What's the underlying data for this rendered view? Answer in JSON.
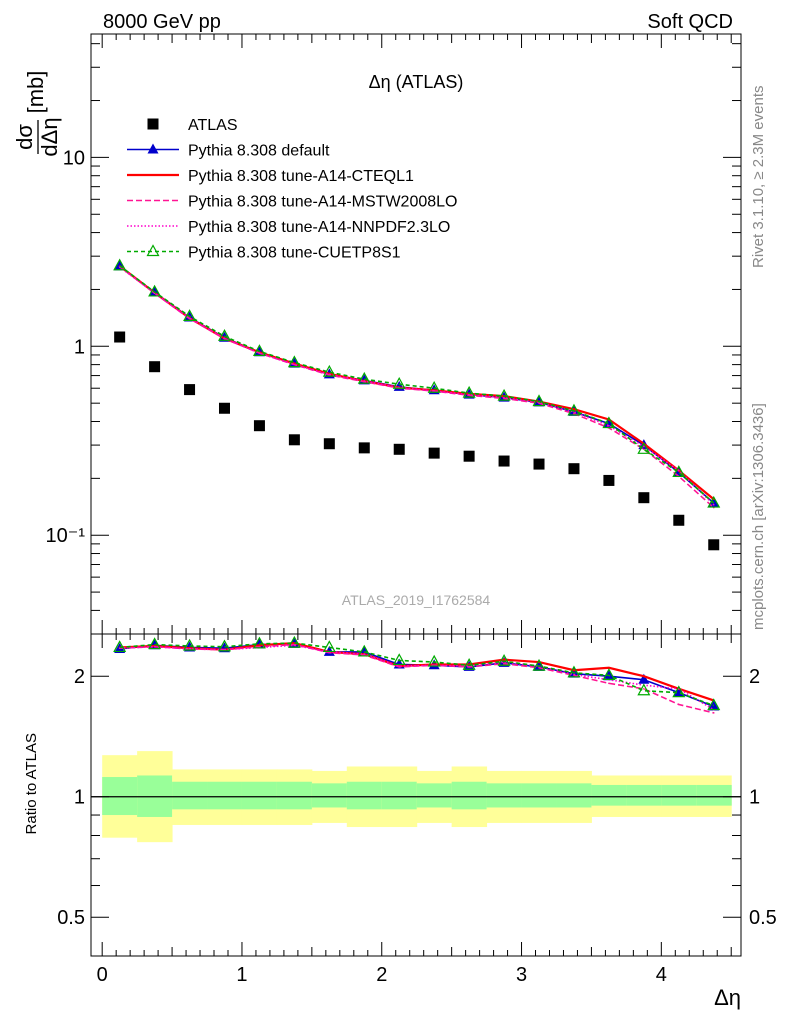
{
  "header": {
    "left_label": "8000 GeV pp",
    "right_label": "Soft QCD",
    "side_label_top": "Rivet 3.1.10, ≥ 2.3M events",
    "side_label_bottom": "mcplots.cern.ch [arXiv:1306.3436]",
    "analysis_id": "ATLAS_2019_I1762584"
  },
  "chart_data": [
    {
      "type": "line",
      "panel": "main",
      "title": "Δη (ATLAS)",
      "ylabel": "dσ/dΔη [mb]",
      "xlabel": "",
      "y_scale": "log",
      "xlim": [
        -0.08,
        4.57
      ],
      "ylim": [
        0.03,
        45
      ],
      "x_ticks": [
        0,
        1,
        2,
        3,
        4
      ],
      "y_tick_labels": [
        "10⁻¹",
        "1",
        "10"
      ],
      "y_tick_values": [
        0.1,
        1,
        10
      ],
      "x": [
        0.125,
        0.375,
        0.625,
        0.875,
        1.125,
        1.375,
        1.625,
        1.875,
        2.125,
        2.375,
        2.625,
        2.875,
        3.125,
        3.375,
        3.625,
        3.875,
        4.125,
        4.375
      ],
      "series": [
        {
          "name": "ATLAS",
          "color": "#000000",
          "marker": "square",
          "values": [
            1.12,
            0.78,
            0.59,
            0.47,
            0.38,
            0.32,
            0.305,
            0.29,
            0.285,
            0.272,
            0.262,
            0.247,
            0.238,
            0.225,
            0.195,
            0.158,
            0.12,
            0.089
          ]
        },
        {
          "name": "Pythia 8.308 default",
          "color": "#0000cc",
          "dash": "",
          "marker": "triangle-filled",
          "values": [
            2.65,
            1.93,
            1.42,
            1.11,
            0.93,
            0.81,
            0.71,
            0.66,
            0.61,
            0.585,
            0.555,
            0.535,
            0.505,
            0.45,
            0.39,
            0.3,
            0.215,
            0.148
          ]
        },
        {
          "name": "Pythia 8.308 tune-A14-CTEQL1",
          "color": "#ff0000",
          "dash": "",
          "marker": "none",
          "values": [
            2.66,
            1.92,
            1.41,
            1.1,
            0.93,
            0.81,
            0.715,
            0.655,
            0.605,
            0.585,
            0.56,
            0.545,
            0.51,
            0.465,
            0.41,
            0.305,
            0.22,
            0.155
          ]
        },
        {
          "name": "Pythia 8.308 tune-A14-MSTW2008LO",
          "color": "#ff1493",
          "dash": "6,3",
          "marker": "none",
          "values": [
            2.64,
            1.91,
            1.4,
            1.1,
            0.92,
            0.8,
            0.705,
            0.65,
            0.6,
            0.58,
            0.55,
            0.53,
            0.5,
            0.44,
            0.37,
            0.285,
            0.205,
            0.14
          ]
        },
        {
          "name": "Pythia 8.308 tune-A14-NNPDF2.3LO",
          "color": "#ff00cc",
          "dash": "1.5,2",
          "marker": "none",
          "values": [
            2.63,
            1.91,
            1.41,
            1.1,
            0.92,
            0.8,
            0.71,
            0.655,
            0.605,
            0.58,
            0.555,
            0.535,
            0.505,
            0.45,
            0.38,
            0.295,
            0.22,
            0.145
          ]
        },
        {
          "name": "Pythia 8.308 tune-CUETP8S1",
          "color": "#00aa00",
          "dash": "4,3",
          "marker": "triangle-open",
          "values": [
            2.67,
            1.94,
            1.44,
            1.13,
            0.94,
            0.82,
            0.73,
            0.67,
            0.63,
            0.6,
            0.565,
            0.545,
            0.51,
            0.455,
            0.39,
            0.285,
            0.215,
            0.148
          ]
        }
      ],
      "legend_placement": "top-left"
    },
    {
      "type": "line",
      "panel": "ratio",
      "ylabel": "Ratio to ATLAS",
      "xlabel": "Δη",
      "y_scale": "log",
      "xlim": [
        -0.08,
        4.57
      ],
      "ylim": [
        0.4,
        2.55
      ],
      "x_ticks": [
        0,
        1,
        2,
        3,
        4
      ],
      "y_tick_labels": [
        "0.5",
        "1",
        "2"
      ],
      "y_tick_values": [
        0.5,
        1,
        2
      ],
      "bin_edges": [
        0,
        0.25,
        0.5,
        0.75,
        1.0,
        1.25,
        1.5,
        1.75,
        2.0,
        2.25,
        2.5,
        2.75,
        3.0,
        3.25,
        3.5,
        3.75,
        4.0,
        4.25,
        4.5
      ],
      "uncertainty_bands": {
        "inner_color": "#99ff99",
        "outer_color": "#ffff99",
        "inner_low": [
          0.9,
          0.89,
          0.93,
          0.93,
          0.93,
          0.93,
          0.94,
          0.93,
          0.93,
          0.94,
          0.93,
          0.94,
          0.94,
          0.94,
          0.95,
          0.95,
          0.95,
          0.95
        ],
        "inner_high": [
          1.12,
          1.13,
          1.09,
          1.09,
          1.09,
          1.09,
          1.08,
          1.09,
          1.09,
          1.08,
          1.09,
          1.08,
          1.08,
          1.08,
          1.07,
          1.07,
          1.07,
          1.07
        ],
        "outer_low": [
          0.79,
          0.77,
          0.85,
          0.85,
          0.85,
          0.85,
          0.86,
          0.84,
          0.84,
          0.86,
          0.84,
          0.86,
          0.86,
          0.86,
          0.89,
          0.89,
          0.89,
          0.89
        ],
        "outer_high": [
          1.27,
          1.3,
          1.17,
          1.17,
          1.17,
          1.17,
          1.16,
          1.19,
          1.19,
          1.16,
          1.19,
          1.16,
          1.16,
          1.16,
          1.13,
          1.13,
          1.13,
          1.13
        ]
      },
      "reference_line": 1,
      "x": [
        0.125,
        0.375,
        0.625,
        0.875,
        1.125,
        1.375,
        1.625,
        1.875,
        2.125,
        2.375,
        2.625,
        2.875,
        3.125,
        3.375,
        3.625,
        3.875,
        4.125,
        4.375
      ],
      "series": [
        {
          "name": "Pythia 8.308 default",
          "color": "#0000cc",
          "dash": "",
          "marker": "triangle-filled",
          "values": [
            2.34,
            2.39,
            2.36,
            2.35,
            2.4,
            2.41,
            2.3,
            2.3,
            2.14,
            2.13,
            2.11,
            2.16,
            2.11,
            2.03,
            2.0,
            1.96,
            1.82,
            1.68
          ]
        },
        {
          "name": "Pythia 8.308 tune-A14-CTEQL1",
          "color": "#ff0000",
          "dash": "",
          "marker": "none",
          "values": [
            2.36,
            2.38,
            2.35,
            2.33,
            2.39,
            2.42,
            2.3,
            2.27,
            2.12,
            2.14,
            2.14,
            2.2,
            2.17,
            2.07,
            2.1,
            2.0,
            1.86,
            1.74
          ]
        },
        {
          "name": "Pythia 8.308 tune-A14-MSTW2008LO",
          "color": "#ff1493",
          "dash": "6,3",
          "marker": "none",
          "values": [
            2.35,
            2.37,
            2.34,
            2.33,
            2.37,
            2.4,
            2.29,
            2.26,
            2.11,
            2.13,
            2.11,
            2.15,
            2.1,
            2.01,
            1.92,
            1.86,
            1.7,
            1.62
          ]
        },
        {
          "name": "Pythia 8.308 tune-A14-NNPDF2.3LO",
          "color": "#ff00cc",
          "dash": "1.5,2",
          "marker": "none",
          "values": [
            2.35,
            2.37,
            2.34,
            2.33,
            2.36,
            2.39,
            2.3,
            2.27,
            2.12,
            2.13,
            2.12,
            2.17,
            2.12,
            2.02,
            1.96,
            1.9,
            1.86,
            1.65
          ]
        },
        {
          "name": "Pythia 8.308 tune-CUETP8S1",
          "color": "#00aa00",
          "dash": "4,3",
          "marker": "triangle-open",
          "values": [
            2.36,
            2.4,
            2.38,
            2.37,
            2.41,
            2.42,
            2.36,
            2.3,
            2.19,
            2.17,
            2.13,
            2.18,
            2.12,
            2.04,
            2.01,
            1.84,
            1.82,
            1.69
          ]
        }
      ]
    }
  ]
}
